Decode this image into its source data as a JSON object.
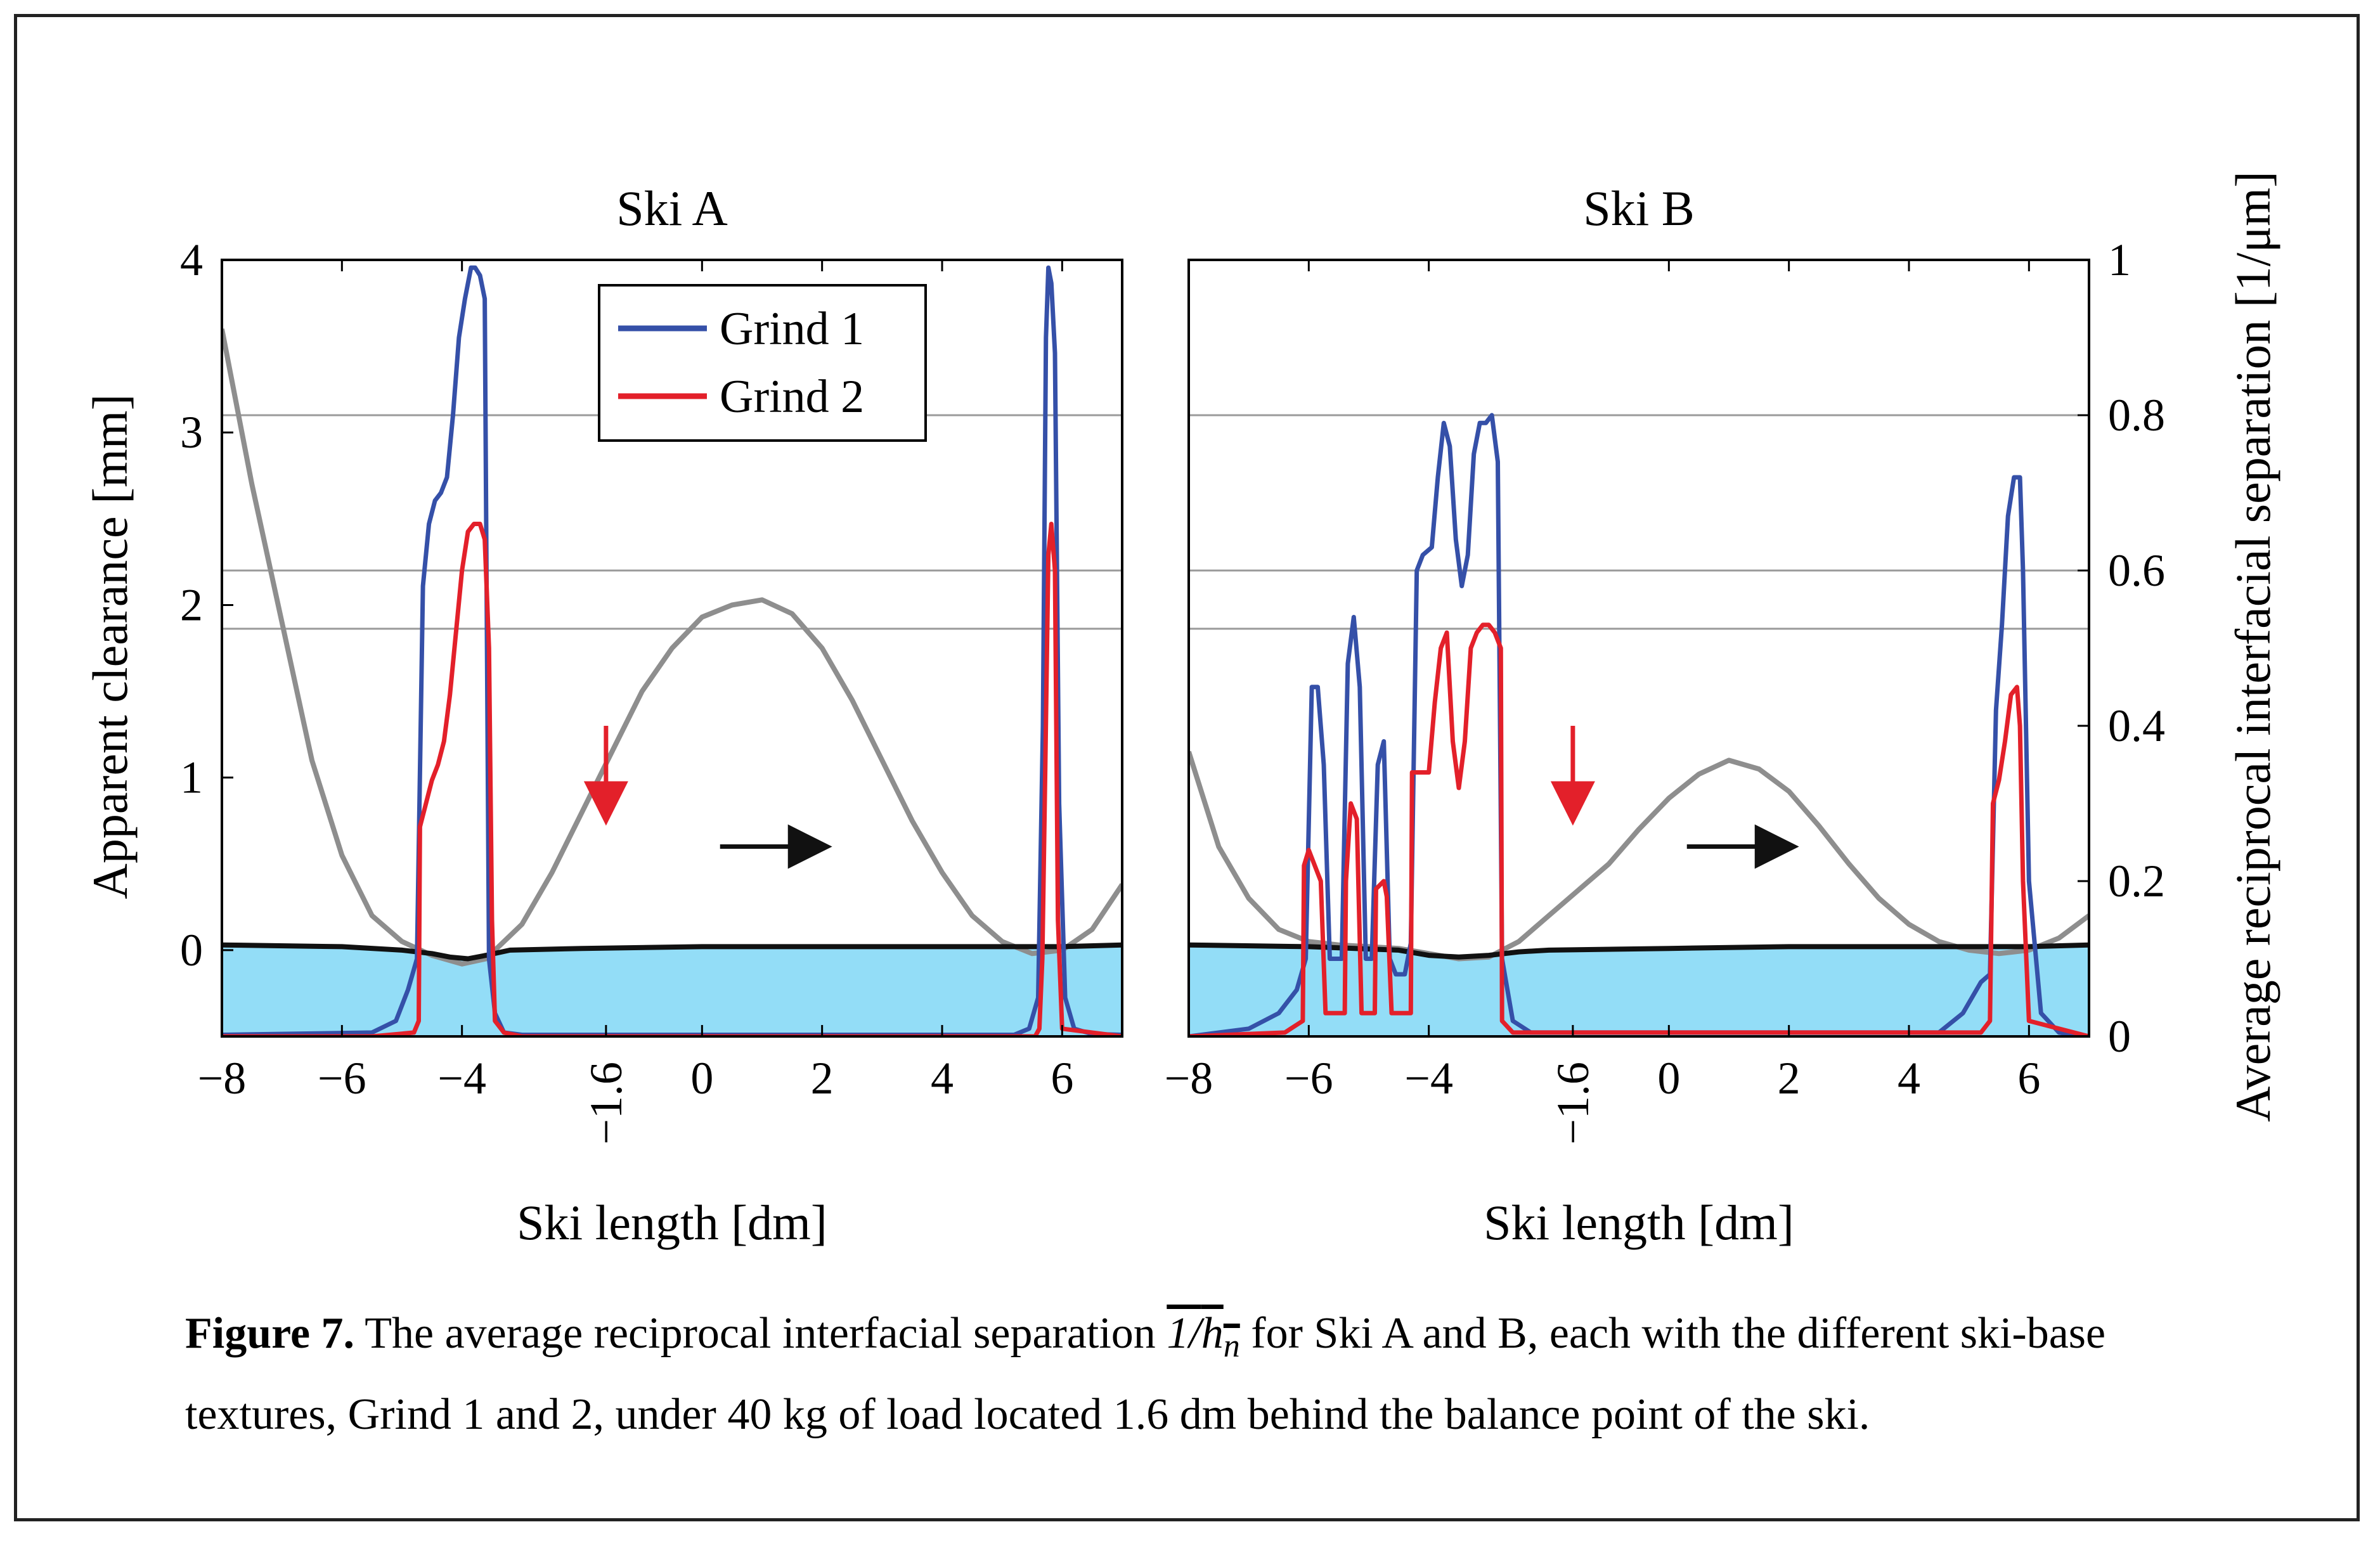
{
  "caption": {
    "label": "Figure 7.",
    "text_before": " The average reciprocal interfacial separation ",
    "math_numerator": "1/",
    "math_var": "h",
    "math_sub": "n",
    "text_after": " for Ski A and B, each with the different ski-base textures, Grind 1 and 2, under 40 kg of load located 1.6 dm behind the balance point of the ski."
  },
  "axes": {
    "ylabel_left": "Apparent clearance [mm]",
    "ylabel_right": "Average reciprocal interfacial separation [1/μm]",
    "xlabel": "Ski length [dm]",
    "load_tick_label": "−1.6"
  },
  "legend": {
    "grind1": "Grind 1",
    "grind2": "Grind 2"
  },
  "colors": {
    "grind1": "#3550a8",
    "grind2": "#e3202a",
    "clearance": "#8e8e8e",
    "base_line": "#111111",
    "snow_fill": "#93ddf7",
    "arrow_red": "#e3202a",
    "arrow_black": "#111111"
  },
  "chart_data": [
    {
      "type": "line",
      "title": "Ski A",
      "xlabel": "Ski length [dm]",
      "ylabel": "Apparent clearance [mm]",
      "y2label": "Average reciprocal interfacial separation [1/μm]",
      "xlim": [
        -8,
        7
      ],
      "ylim": [
        -0.5,
        4
      ],
      "y2lim": [
        0,
        1
      ],
      "xticks": [
        -8,
        -6,
        -4,
        0,
        2,
        4,
        6
      ],
      "xtick_labels": [
        "−8",
        "−6",
        "−4",
        "0",
        "2",
        "4",
        "6"
      ],
      "yticks": [
        0,
        1,
        2,
        3,
        4
      ],
      "ytick_labels": [
        "0",
        "1",
        "2",
        "3",
        "4"
      ],
      "extra_xtick": -1.6,
      "load_position": -1.6,
      "motion_arrow": {
        "x": [
          0.3,
          1.8
        ],
        "y": 0.6
      },
      "load_arrow": {
        "x": -1.6,
        "y_top": 1.3,
        "y_bottom": 0.85
      },
      "grid_y2": [
        0.6,
        0.8,
        0.525
      ],
      "legend": "top-center",
      "series": [
        {
          "name": "clearance",
          "axis": "left",
          "x": [
            -8,
            -7.5,
            -7,
            -6.5,
            -6,
            -5.5,
            -5,
            -4.5,
            -4,
            -3.6,
            -3,
            -2.5,
            -2,
            -1.5,
            -1,
            -0.5,
            0,
            0.5,
            1,
            1.5,
            2,
            2.5,
            3,
            3.5,
            4,
            4.5,
            5,
            5.5,
            6,
            6.5,
            7
          ],
          "y": [
            3.6,
            2.7,
            1.9,
            1.1,
            0.55,
            0.2,
            0.05,
            -0.03,
            -0.08,
            -0.05,
            0.15,
            0.45,
            0.8,
            1.15,
            1.5,
            1.75,
            1.93,
            2.0,
            2.03,
            1.95,
            1.75,
            1.45,
            1.1,
            0.75,
            0.45,
            0.2,
            0.05,
            -0.02,
            0.0,
            0.12,
            0.38
          ]
        },
        {
          "name": "base",
          "axis": "left",
          "x": [
            -8,
            -6,
            -5,
            -4.5,
            -4.2,
            -3.9,
            -3.6,
            -3.2,
            -2,
            0,
            2,
            4,
            6,
            7
          ],
          "y": [
            0.03,
            0.02,
            0.0,
            -0.02,
            -0.04,
            -0.05,
            -0.03,
            0.0,
            0.01,
            0.02,
            0.02,
            0.02,
            0.02,
            0.03
          ]
        },
        {
          "name": "Grind 1",
          "axis": "right",
          "x": [
            -8,
            -5.5,
            -5.1,
            -4.9,
            -4.75,
            -4.65,
            -4.55,
            -4.45,
            -4.35,
            -4.25,
            -4.15,
            -4.05,
            -3.95,
            -3.85,
            -3.78,
            -3.7,
            -3.62,
            -3.55,
            -3.45,
            -3.3,
            -3.0,
            5.2,
            5.45,
            5.6,
            5.68,
            5.73,
            5.77,
            5.82,
            5.88,
            5.95,
            6.05,
            6.2,
            6.5,
            7
          ],
          "y": [
            0.002,
            0.005,
            0.02,
            0.06,
            0.1,
            0.58,
            0.66,
            0.69,
            0.7,
            0.72,
            0.8,
            0.9,
            0.95,
            0.99,
            0.99,
            0.98,
            0.95,
            0.1,
            0.03,
            0.005,
            0.002,
            0.002,
            0.01,
            0.05,
            0.4,
            0.9,
            0.99,
            0.97,
            0.88,
            0.3,
            0.05,
            0.01,
            0.003,
            0.002
          ]
        },
        {
          "name": "Grind 2",
          "axis": "right",
          "x": [
            -8,
            -5.5,
            -4.8,
            -4.72,
            -4.7,
            -4.6,
            -4.5,
            -4.4,
            -4.3,
            -4.2,
            -4.1,
            -4.0,
            -3.9,
            -3.8,
            -3.7,
            -3.62,
            -3.55,
            -3.5,
            -3.45,
            -3.3,
            -3.0,
            5.55,
            5.62,
            5.67,
            5.72,
            5.77,
            5.82,
            5.88,
            5.93,
            6.0,
            7
          ],
          "y": [
            0.0,
            0.0,
            0.005,
            0.02,
            0.27,
            0.3,
            0.33,
            0.35,
            0.38,
            0.44,
            0.52,
            0.6,
            0.65,
            0.66,
            0.66,
            0.64,
            0.5,
            0.15,
            0.02,
            0.005,
            0.0,
            0.0,
            0.01,
            0.1,
            0.35,
            0.62,
            0.66,
            0.6,
            0.15,
            0.01,
            0.0
          ]
        }
      ]
    },
    {
      "type": "line",
      "title": "Ski B",
      "xlabel": "Ski length [dm]",
      "ylabel": "Apparent clearance [mm]",
      "y2label": "Average reciprocal interfacial separation [1/μm]",
      "xlim": [
        -8,
        7
      ],
      "ylim": [
        -0.5,
        4
      ],
      "y2lim": [
        0,
        1
      ],
      "xticks": [
        -8,
        -6,
        -4,
        0,
        2,
        4,
        6
      ],
      "xtick_labels": [
        "−8",
        "−6",
        "−4",
        "0",
        "2",
        "4",
        "6"
      ],
      "y2ticks": [
        0,
        0.2,
        0.4,
        0.6,
        0.8,
        1
      ],
      "y2tick_labels": [
        "0",
        "0.2",
        "0.4",
        "0.6",
        "0.8",
        "1"
      ],
      "extra_xtick": -1.6,
      "load_position": -1.6,
      "motion_arrow": {
        "x": [
          0.3,
          1.8
        ],
        "y": 0.6
      },
      "load_arrow": {
        "x": -1.6,
        "y_top": 1.3,
        "y_bottom": 0.85
      },
      "grid_y2": [
        0.6,
        0.8,
        0.525
      ],
      "series": [
        {
          "name": "clearance",
          "axis": "left",
          "x": [
            -8,
            -7.5,
            -7,
            -6.5,
            -6,
            -5.5,
            -5,
            -4.5,
            -4,
            -3.5,
            -3,
            -2.5,
            -2,
            -1.5,
            -1,
            -0.5,
            0,
            0.5,
            1,
            1.5,
            2,
            2.5,
            3,
            3.5,
            4,
            4.5,
            5,
            5.5,
            6,
            6.5,
            7
          ],
          "y": [
            1.15,
            0.6,
            0.3,
            0.12,
            0.05,
            0.03,
            0.02,
            0.01,
            -0.02,
            -0.05,
            -0.04,
            0.05,
            0.2,
            0.35,
            0.5,
            0.7,
            0.88,
            1.02,
            1.1,
            1.05,
            0.92,
            0.72,
            0.5,
            0.3,
            0.15,
            0.05,
            0.0,
            -0.02,
            0.0,
            0.07,
            0.2
          ]
        },
        {
          "name": "base",
          "axis": "left",
          "x": [
            -8,
            -6,
            -4.5,
            -4,
            -3.5,
            -3,
            -2.5,
            -2,
            0,
            2,
            4,
            5.5,
            6,
            7
          ],
          "y": [
            0.03,
            0.02,
            0.0,
            -0.03,
            -0.04,
            -0.03,
            -0.01,
            0.0,
            0.01,
            0.02,
            0.02,
            0.02,
            0.02,
            0.03
          ]
        },
        {
          "name": "Grind 1",
          "axis": "right",
          "x": [
            -8,
            -7,
            -6.5,
            -6.2,
            -6.05,
            -5.95,
            -5.85,
            -5.75,
            -5.65,
            -5.45,
            -5.35,
            -5.25,
            -5.15,
            -5.05,
            -4.95,
            -4.85,
            -4.75,
            -4.65,
            -4.55,
            -4.4,
            -4.3,
            -4.2,
            -4.1,
            -3.95,
            -3.85,
            -3.75,
            -3.65,
            -3.55,
            -3.45,
            -3.35,
            -3.25,
            -3.15,
            -3.05,
            -2.95,
            -2.85,
            -2.78,
            -2.6,
            -2.3,
            4.5,
            4.9,
            5.2,
            5.35,
            5.45,
            5.55,
            5.65,
            5.75,
            5.85,
            5.9,
            6.0,
            6.2,
            6.5,
            7
          ],
          "y": [
            0.0,
            0.01,
            0.03,
            0.06,
            0.1,
            0.45,
            0.45,
            0.35,
            0.1,
            0.1,
            0.48,
            0.54,
            0.45,
            0.1,
            0.1,
            0.35,
            0.38,
            0.1,
            0.08,
            0.08,
            0.12,
            0.6,
            0.62,
            0.63,
            0.72,
            0.79,
            0.76,
            0.64,
            0.58,
            0.62,
            0.75,
            0.79,
            0.79,
            0.8,
            0.74,
            0.1,
            0.02,
            0.005,
            0.005,
            0.03,
            0.07,
            0.08,
            0.42,
            0.53,
            0.67,
            0.72,
            0.72,
            0.6,
            0.2,
            0.03,
            0.005,
            0.0
          ]
        },
        {
          "name": "Grind 2",
          "axis": "right",
          "x": [
            -8,
            -6.4,
            -6.1,
            -6.08,
            -6.0,
            -5.9,
            -5.8,
            -5.72,
            -5.7,
            -5.4,
            -5.38,
            -5.3,
            -5.2,
            -5.12,
            -5.1,
            -4.9,
            -4.88,
            -4.75,
            -4.7,
            -4.62,
            -4.6,
            -4.3,
            -4.28,
            -4.2,
            -4.0,
            -3.9,
            -3.8,
            -3.7,
            -3.6,
            -3.5,
            -3.4,
            -3.3,
            -3.2,
            -3.1,
            -3.0,
            -2.9,
            -2.8,
            -2.78,
            -2.6,
            5.2,
            5.35,
            5.4,
            5.5,
            5.6,
            5.7,
            5.8,
            5.85,
            5.9,
            6.0,
            7
          ],
          "y": [
            0.0,
            0.005,
            0.02,
            0.22,
            0.24,
            0.22,
            0.2,
            0.03,
            0.03,
            0.03,
            0.2,
            0.3,
            0.28,
            0.03,
            0.03,
            0.03,
            0.19,
            0.2,
            0.18,
            0.03,
            0.03,
            0.03,
            0.34,
            0.34,
            0.34,
            0.43,
            0.5,
            0.52,
            0.38,
            0.32,
            0.38,
            0.5,
            0.52,
            0.53,
            0.53,
            0.52,
            0.5,
            0.02,
            0.005,
            0.005,
            0.02,
            0.3,
            0.33,
            0.38,
            0.44,
            0.45,
            0.4,
            0.2,
            0.02,
            0.0
          ]
        }
      ]
    }
  ]
}
